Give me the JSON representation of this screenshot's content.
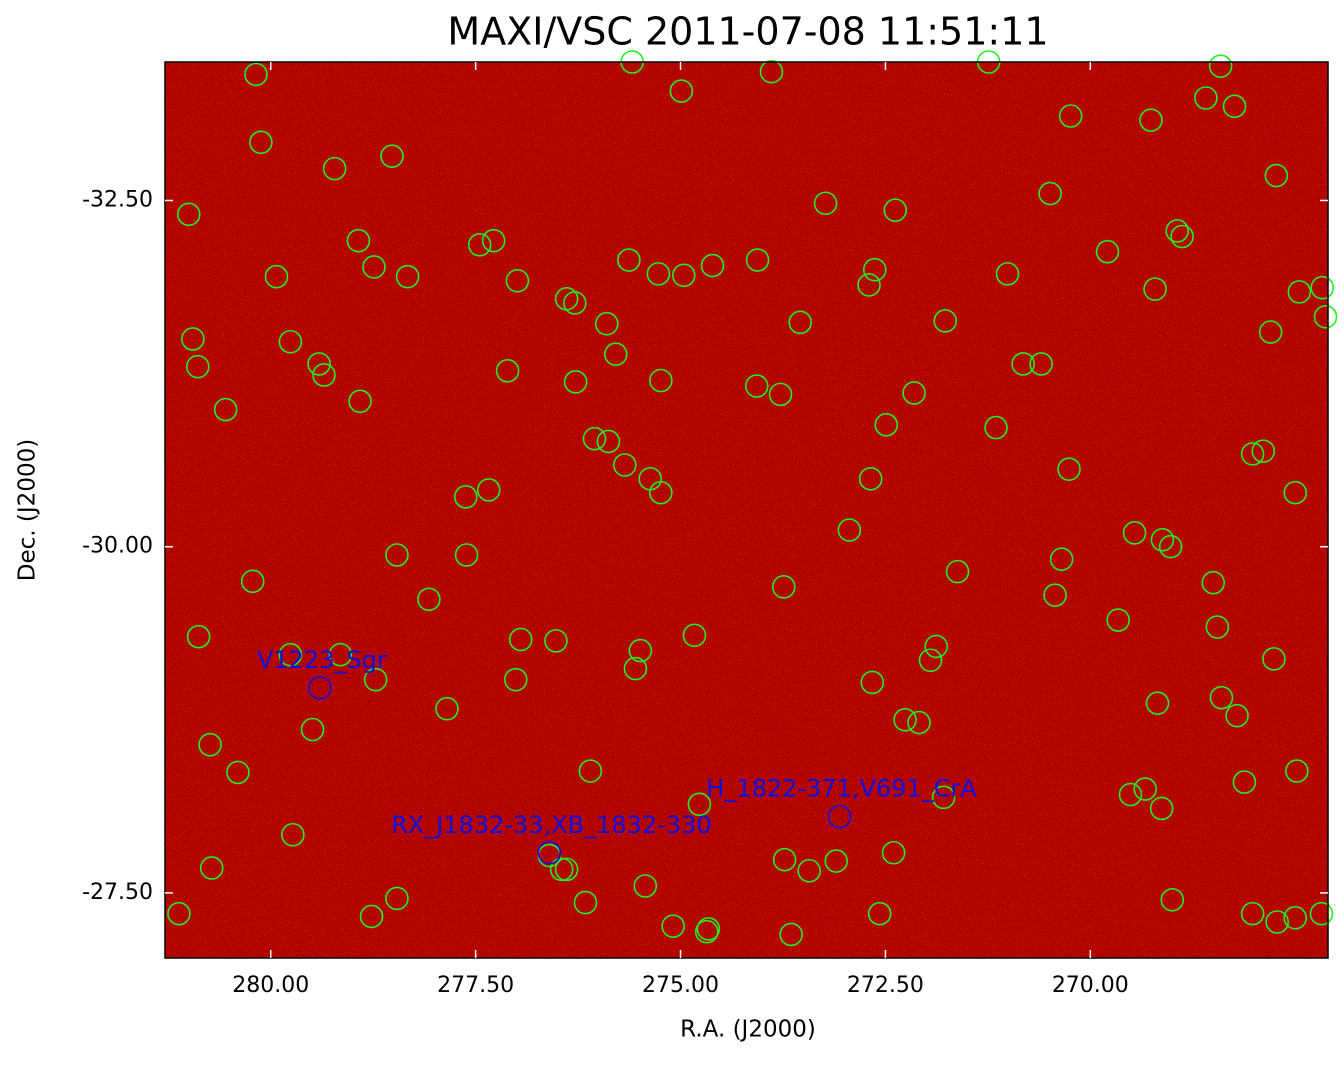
{
  "chart_data": {
    "type": "scatter",
    "title": "MAXI/VSC 2011-07-08 11:51:11",
    "xlabel": "R.A. (J2000)",
    "ylabel": "Dec. (J2000)",
    "xlim": [
      281.29,
      267.1
    ],
    "ylim": [
      -33.5,
      -27.03
    ],
    "y_inverted": true,
    "xticks": [
      {
        "value": 280,
        "label": "280.00"
      },
      {
        "value": 277.5,
        "label": "277.50"
      },
      {
        "value": 275,
        "label": "275.00"
      },
      {
        "value": 272.5,
        "label": "272.50"
      },
      {
        "value": 270,
        "label": "270.00"
      }
    ],
    "yticks": [
      {
        "value": -32.5,
        "label": "-32.50"
      },
      {
        "value": -30,
        "label": "-30.00"
      },
      {
        "value": -27.5,
        "label": "-27.50"
      }
    ],
    "background_color": "#b00000",
    "series": [
      {
        "color": "#22ee22",
        "points": [
          [
            280.18,
            -33.41
          ],
          [
            280.12,
            -32.92
          ],
          [
            279.22,
            -32.73
          ],
          [
            278.52,
            -32.82
          ],
          [
            281.0,
            -32.4
          ],
          [
            279.93,
            -31.95
          ],
          [
            278.93,
            -32.21
          ],
          [
            278.74,
            -32.02
          ],
          [
            278.33,
            -31.95
          ],
          [
            277.45,
            -32.18
          ],
          [
            277.28,
            -32.21
          ],
          [
            276.99,
            -31.92
          ],
          [
            280.95,
            -31.5
          ],
          [
            280.89,
            -31.3
          ],
          [
            279.76,
            -31.48
          ],
          [
            279.41,
            -31.32
          ],
          [
            279.35,
            -31.24
          ],
          [
            280.55,
            -30.99
          ],
          [
            278.91,
            -31.05
          ],
          [
            277.11,
            -31.27
          ],
          [
            276.39,
            -31.79
          ],
          [
            276.29,
            -31.76
          ],
          [
            275.9,
            -31.61
          ],
          [
            276.28,
            -31.19
          ],
          [
            275.79,
            -31.39
          ],
          [
            275.63,
            -32.07
          ],
          [
            275.27,
            -31.97
          ],
          [
            274.96,
            -31.96
          ],
          [
            274.61,
            -32.03
          ],
          [
            274.06,
            -32.07
          ],
          [
            274.99,
            -33.29
          ],
          [
            275.59,
            -33.5
          ],
          [
            273.89,
            -33.43
          ],
          [
            273.23,
            -32.48
          ],
          [
            272.38,
            -32.43
          ],
          [
            272.63,
            -32.0
          ],
          [
            272.7,
            -31.89
          ],
          [
            273.54,
            -31.62
          ],
          [
            271.77,
            -31.63
          ],
          [
            271.01,
            -31.97
          ],
          [
            270.49,
            -32.55
          ],
          [
            270.24,
            -33.11
          ],
          [
            269.26,
            -33.08
          ],
          [
            268.59,
            -33.24
          ],
          [
            268.24,
            -33.18
          ],
          [
            268.41,
            -33.47
          ],
          [
            269.79,
            -32.13
          ],
          [
            268.94,
            -32.28
          ],
          [
            268.88,
            -32.24
          ],
          [
            269.21,
            -31.86
          ],
          [
            267.73,
            -32.68
          ],
          [
            267.45,
            -31.84
          ],
          [
            267.8,
            -31.55
          ],
          [
            270.82,
            -31.32
          ],
          [
            270.6,
            -31.32
          ],
          [
            272.15,
            -31.11
          ],
          [
            274.07,
            -31.16
          ],
          [
            273.78,
            -31.1
          ],
          [
            275.24,
            -31.2
          ],
          [
            272.49,
            -30.88
          ],
          [
            271.15,
            -30.86
          ],
          [
            276.05,
            -30.78
          ],
          [
            275.88,
            -30.76
          ],
          [
            275.68,
            -30.59
          ],
          [
            275.37,
            -30.49
          ],
          [
            275.24,
            -30.39
          ],
          [
            272.68,
            -30.49
          ],
          [
            277.62,
            -30.36
          ],
          [
            277.34,
            -30.41
          ],
          [
            277.61,
            -29.94
          ],
          [
            278.46,
            -29.94
          ],
          [
            278.07,
            -29.62
          ],
          [
            280.22,
            -29.75
          ],
          [
            272.94,
            -30.12
          ],
          [
            270.26,
            -30.56
          ],
          [
            270.35,
            -29.91
          ],
          [
            269.46,
            -30.1
          ],
          [
            269.12,
            -30.05
          ],
          [
            269.02,
            -30.0
          ],
          [
            268.02,
            -30.67
          ],
          [
            267.89,
            -30.69
          ],
          [
            267.5,
            -30.39
          ],
          [
            271.62,
            -29.82
          ],
          [
            273.74,
            -29.71
          ],
          [
            268.5,
            -29.74
          ],
          [
            270.43,
            -29.65
          ],
          [
            268.45,
            -29.42
          ],
          [
            269.66,
            -29.47
          ],
          [
            280.88,
            -29.35
          ],
          [
            279.76,
            -29.22
          ],
          [
            279.15,
            -29.22
          ],
          [
            278.72,
            -29.04
          ],
          [
            276.95,
            -29.33
          ],
          [
            276.52,
            -29.32
          ],
          [
            277.01,
            -29.04
          ],
          [
            275.49,
            -29.25
          ],
          [
            275.55,
            -29.12
          ],
          [
            274.83,
            -29.36
          ],
          [
            272.66,
            -29.02
          ],
          [
            271.95,
            -29.18
          ],
          [
            271.88,
            -29.28
          ],
          [
            267.76,
            -29.19
          ],
          [
            277.85,
            -28.83
          ],
          [
            279.49,
            -28.68
          ],
          [
            280.74,
            -28.57
          ],
          [
            280.4,
            -28.37
          ],
          [
            272.26,
            -28.75
          ],
          [
            272.09,
            -28.73
          ],
          [
            269.18,
            -28.87
          ],
          [
            268.4,
            -28.91
          ],
          [
            268.21,
            -28.78
          ],
          [
            267.48,
            -28.38
          ],
          [
            268.12,
            -28.3
          ],
          [
            269.51,
            -28.21
          ],
          [
            269.33,
            -28.25
          ],
          [
            269.13,
            -28.11
          ],
          [
            271.79,
            -28.19
          ],
          [
            276.1,
            -28.38
          ],
          [
            274.77,
            -28.14
          ],
          [
            279.73,
            -27.92
          ],
          [
            280.72,
            -27.68
          ],
          [
            281.12,
            -27.35
          ],
          [
            278.77,
            -27.33
          ],
          [
            278.46,
            -27.46
          ],
          [
            276.6,
            -27.77
          ],
          [
            276.45,
            -27.67
          ],
          [
            276.39,
            -27.67
          ],
          [
            276.16,
            -27.43
          ],
          [
            275.43,
            -27.55
          ],
          [
            275.09,
            -27.26
          ],
          [
            274.68,
            -27.22
          ],
          [
            274.66,
            -27.24
          ],
          [
            273.65,
            -27.2
          ],
          [
            273.73,
            -27.74
          ],
          [
            273.43,
            -27.66
          ],
          [
            273.1,
            -27.73
          ],
          [
            272.4,
            -27.79
          ],
          [
            272.57,
            -27.35
          ],
          [
            269.0,
            -27.45
          ],
          [
            268.02,
            -27.35
          ],
          [
            267.72,
            -27.29
          ],
          [
            267.5,
            -27.32
          ],
          [
            267.18,
            -27.35
          ],
          [
            267.17,
            -31.87
          ],
          [
            267.13,
            -31.66
          ],
          [
            271.24,
            -33.5
          ]
        ]
      }
    ],
    "annotations": {
      "color": "#1010e0",
      "sources": [
        {
          "label": "V1223_Sgr",
          "x": 279.4,
          "y": -28.98
        },
        {
          "label": "RX_J1832-33,XB_1832-330",
          "x": 276.6,
          "y": -27.79
        },
        {
          "label": "H_1822-371,V691_CrA",
          "x": 273.06,
          "y": -28.05
        }
      ]
    }
  }
}
